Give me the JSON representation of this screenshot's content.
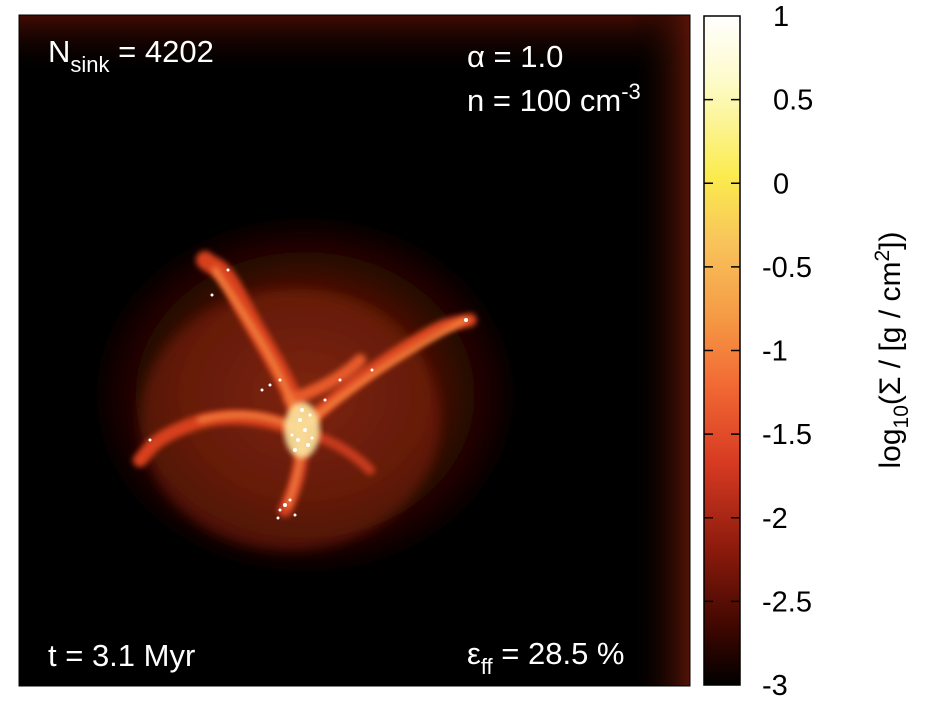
{
  "panel": {
    "n_sink_label": {
      "base": "N",
      "sub": "sink",
      "rest": " = 4202"
    },
    "alpha_label": "α = 1.0",
    "density_label": {
      "base": "n = 100 cm",
      "sup": "-3"
    },
    "time_label": "t = 3.1 Myr",
    "eff_label": {
      "base": "ε",
      "sub": "ff",
      "rest": " = 28.5 %"
    }
  },
  "colorbar": {
    "title": {
      "p1": "log",
      "sub": "10",
      "p2": "(Σ / [g / cm",
      "sup": "2",
      "p3": "])"
    },
    "ticks": [
      {
        "label": "1",
        "value": 1
      },
      {
        "label": "0.5",
        "value": 0.5
      },
      {
        "label": "0",
        "value": 0
      },
      {
        "label": "-0.5",
        "value": -0.5
      },
      {
        "label": "-1",
        "value": -1
      },
      {
        "label": "-1.5",
        "value": -1.5
      },
      {
        "label": "-2",
        "value": -2
      },
      {
        "label": "-2.5",
        "value": -2.5
      },
      {
        "label": "-3",
        "value": -3
      }
    ],
    "range": [
      -3,
      1
    ],
    "colors": [
      "#000000",
      "#3a0600",
      "#8a1a0c",
      "#d63a22",
      "#f26a34",
      "#f59a45",
      "#f8c35a",
      "#fbeb4e",
      "#fdfbc8",
      "#ffffff"
    ]
  }
}
